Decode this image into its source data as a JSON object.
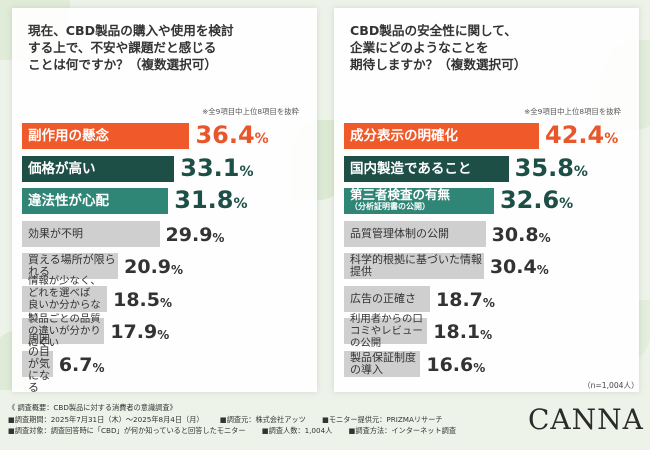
{
  "colors": {
    "orange": "#f05a2b",
    "dark_teal": "#1d4f47",
    "mid_teal": "#2f8677",
    "gray": "#cfcfcf",
    "orange_text": "#e8562a",
    "teal_text": "#1d4f47"
  },
  "chart_data": [
    {
      "type": "bar",
      "title": "現在、CBD製品の購入や使用を検討\nする上で、不安や課題だと感じる\nことは何ですか？（複数選択可）",
      "note": "※全9項目中上位8項目を抜粋",
      "unit": "%",
      "xlim": [
        0,
        45
      ],
      "categories": [
        "副作用の懸念",
        "価格が高い",
        "違法性が心配",
        "効果が不明",
        "買える場所が限られる",
        "情報が少なく、どれを選べば\n良いか分からない",
        "製品ごとの品質の違いが分かりにくい",
        "周囲の目が気になる"
      ],
      "values": [
        36.4,
        33.1,
        31.8,
        29.9,
        20.9,
        18.5,
        17.9,
        6.7
      ]
    },
    {
      "type": "bar",
      "title": "CBD製品の安全性に関して、\n企業にどのようなことを\n期待しますか？（複数選択可）",
      "note": "※全9項目中上位8項目を抜粋",
      "unit": "%",
      "xlim": [
        0,
        45
      ],
      "categories": [
        "成分表示の明確化",
        "国内製造であること",
        "第三者検査の有無",
        "品質管理体制の公開",
        "科学的根拠に基づいた情報提供",
        "広告の正確さ",
        "利用者からの口コミやレビューの公開",
        "製品保証制度の導入"
      ],
      "category_sub": [
        "",
        "",
        "（分析証明書の公開）",
        "",
        "",
        "",
        "",
        ""
      ],
      "values": [
        42.4,
        35.8,
        32.6,
        30.8,
        30.4,
        18.7,
        18.1,
        16.6
      ]
    }
  ],
  "n_note": "（n=1,004人）",
  "footer": {
    "line1": "《 調査概要：CBD製品に対する消費者の意識調査》",
    "line2a": "■調査期間：2025年7月31日（木）～2025年8月4日（月）",
    "line2b": "■調査元：株式会社アッツ",
    "line2c": "■モニター提供元：PRIZMAリサーチ",
    "line3a": "■調査対象：調査回答時に「CBD」が何か知っていると回答したモニター",
    "line3b": "■調査人数：1,004人",
    "line3c": "■調査方法：インターネット調査"
  },
  "brand": "CANNA"
}
